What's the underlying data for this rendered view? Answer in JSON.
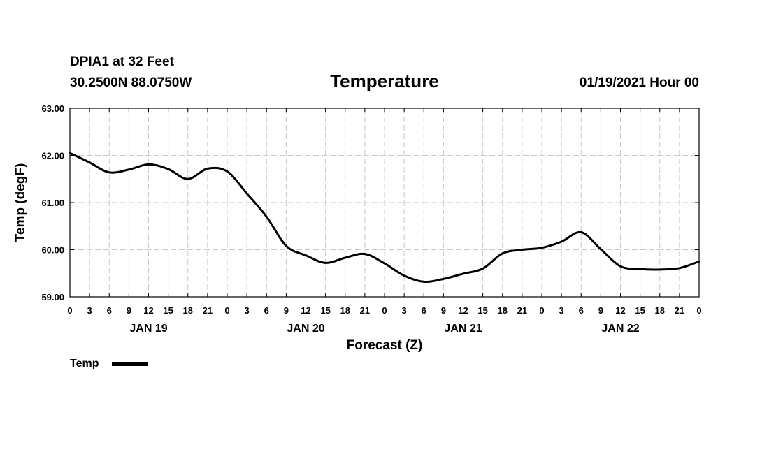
{
  "header": {
    "station": "DPIA1 at 32 Feet",
    "coordinates": "30.2500N 88.0750W",
    "title": "Temperature",
    "issued": "01/19/2021 Hour 00"
  },
  "chart_data": {
    "type": "line",
    "title": "Temperature",
    "xlabel": "Forecast (Z)",
    "ylabel": "Temp (degF)",
    "ylim": [
      59.0,
      63.0
    ],
    "y_ticks": [
      "59.00",
      "60.00",
      "61.00",
      "62.00",
      "63.00"
    ],
    "xlim": [
      0,
      96
    ],
    "x_tick_step_hours": 3,
    "x_tick_labels": [
      "0",
      "3",
      "6",
      "9",
      "12",
      "15",
      "18",
      "21",
      "0",
      "3",
      "6",
      "9",
      "12",
      "15",
      "18",
      "21",
      "0",
      "3",
      "6",
      "9",
      "12",
      "15",
      "18",
      "21",
      "0",
      "3",
      "6",
      "9",
      "12",
      "15",
      "18",
      "21",
      "0"
    ],
    "day_labels": [
      {
        "label": "JAN 19",
        "hour": 12
      },
      {
        "label": "JAN 20",
        "hour": 36
      },
      {
        "label": "JAN 21",
        "hour": 60
      },
      {
        "label": "JAN 22",
        "hour": 84
      }
    ],
    "grid": true,
    "legend_position": "bottom-left",
    "series": [
      {
        "name": "Temp",
        "color": "#000000",
        "x": [
          0,
          3,
          6,
          9,
          12,
          15,
          18,
          21,
          24,
          27,
          30,
          33,
          36,
          39,
          42,
          45,
          48,
          51,
          54,
          57,
          60,
          63,
          66,
          69,
          72,
          75,
          78,
          81,
          84,
          87,
          90,
          93,
          96
        ],
        "values": [
          62.05,
          61.85,
          61.64,
          61.7,
          61.81,
          61.71,
          61.5,
          61.72,
          61.66,
          61.19,
          60.7,
          60.08,
          59.88,
          59.72,
          59.83,
          59.91,
          59.71,
          59.45,
          59.32,
          59.38,
          59.49,
          59.6,
          59.92,
          60.0,
          60.04,
          60.17,
          60.37,
          60.01,
          59.65,
          59.59,
          59.58,
          59.61,
          59.75
        ]
      }
    ]
  }
}
